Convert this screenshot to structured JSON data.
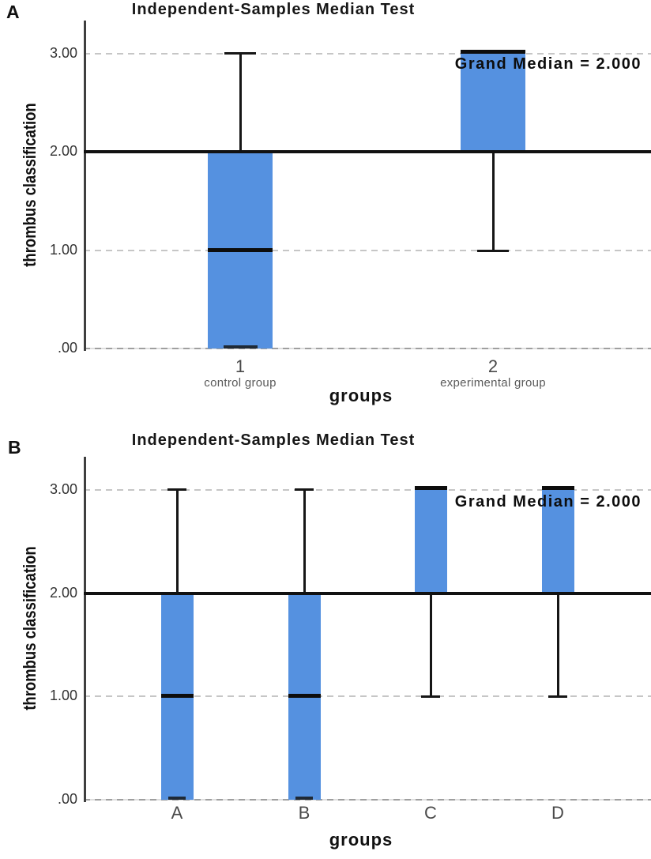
{
  "figure_title": "Independent-Samples Median Test figure, panels A and B",
  "colors": {
    "bar_fill": "#5591E0",
    "median_line": "#0d0d0d",
    "grand_median_line": "#111111",
    "whisker": "#161616",
    "gridline": "#c6c6c6",
    "axis_line": "#3f3f3f",
    "background": "#ffffff"
  },
  "chart_data": [
    {
      "type": "boxplot",
      "panel_label": "A",
      "title": "Independent-Samples Median Test",
      "xlabel": "groups",
      "ylabel": "thrombus classification",
      "ylim": [
        0,
        3.35
      ],
      "grid": "horizontal dashed at ticks, legend none",
      "yticks": [
        {
          "value": 3,
          "label": "3.00"
        },
        {
          "value": 2,
          "label": "2.00"
        },
        {
          "value": 1,
          "label": "1.00"
        },
        {
          "value": 0,
          "label": ".00"
        }
      ],
      "grand_median": {
        "value": 2.0,
        "label": "Grand Median = 2.000"
      },
      "categories": [
        {
          "tick": "1",
          "sublabel": "control group"
        },
        {
          "tick": "2",
          "sublabel": "experimental group"
        }
      ],
      "boxes": [
        {
          "category": "1",
          "box_bottom": 0.0,
          "box_top": 2.0,
          "median": 1.0,
          "whisker_low": 0.0,
          "whisker_high": 3.0
        },
        {
          "category": "2",
          "box_bottom": 2.0,
          "box_top": 3.0,
          "median": 3.0,
          "whisker_low": 1.0,
          "whisker_high": 3.0
        }
      ]
    },
    {
      "type": "boxplot",
      "panel_label": "B",
      "title": "Independent-Samples Median Test",
      "xlabel": "groups",
      "ylabel": "thrombus classification",
      "ylim": [
        0,
        3.35
      ],
      "grid": "horizontal dashed at ticks, legend none",
      "yticks": [
        {
          "value": 3,
          "label": "3.00"
        },
        {
          "value": 2,
          "label": "2.00"
        },
        {
          "value": 1,
          "label": "1.00"
        },
        {
          "value": 0,
          "label": ".00"
        }
      ],
      "grand_median": {
        "value": 2.0,
        "label": "Grand Median = 2.000"
      },
      "categories": [
        {
          "tick": "A",
          "sublabel": ""
        },
        {
          "tick": "B",
          "sublabel": ""
        },
        {
          "tick": "C",
          "sublabel": ""
        },
        {
          "tick": "D",
          "sublabel": ""
        }
      ],
      "boxes": [
        {
          "category": "A",
          "box_bottom": 0.0,
          "box_top": 2.0,
          "median": 1.0,
          "whisker_low": 0.0,
          "whisker_high": 3.0
        },
        {
          "category": "B",
          "box_bottom": 0.0,
          "box_top": 2.0,
          "median": 1.0,
          "whisker_low": 0.0,
          "whisker_high": 3.0
        },
        {
          "category": "C",
          "box_bottom": 2.0,
          "box_top": 3.0,
          "median": 3.0,
          "whisker_low": 1.0,
          "whisker_high": 3.0
        },
        {
          "category": "D",
          "box_bottom": 2.0,
          "box_top": 3.0,
          "median": 3.0,
          "whisker_low": 1.0,
          "whisker_high": 3.0
        }
      ]
    }
  ]
}
